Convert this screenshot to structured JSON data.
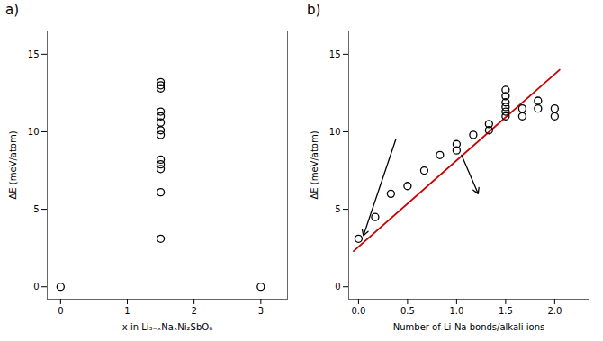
{
  "chart_data": [
    {
      "type": "scatter",
      "title": "a)",
      "x_label": "x in Li₃₋ₓNaₓNi₂SbO₆",
      "y_label": "ΔE (meV/atom)",
      "xlim": [
        -0.2,
        3.4
      ],
      "ylim": [
        -0.8,
        16.5
      ],
      "xticks": [
        0,
        1,
        2,
        3
      ],
      "yticks": [
        0,
        5,
        10,
        15
      ],
      "series": [
        {
          "type": "scatter",
          "marker": "circle",
          "color": "#000000",
          "x": [
            0.0,
            1.5,
            1.5,
            1.5,
            1.5,
            1.5,
            1.5,
            1.5,
            1.5,
            1.5,
            1.5,
            1.5,
            1.5,
            1.5,
            3.0
          ],
          "values": [
            0.0,
            3.1,
            6.1,
            7.6,
            7.9,
            8.2,
            9.8,
            10.1,
            10.6,
            11.0,
            11.3,
            12.8,
            13.0,
            13.2,
            0.0
          ]
        }
      ]
    },
    {
      "type": "scatter",
      "title": "b)",
      "x_label": "Number of Li-Na bonds/alkali ions",
      "y_label": "ΔE (meV/atom)",
      "xlim": [
        -0.1,
        2.35
      ],
      "ylim": [
        -0.8,
        16.5
      ],
      "xticks": [
        {
          "value": 0,
          "label": "0.0"
        },
        0.5,
        {
          "value": 1,
          "label": "1.0"
        },
        1.5,
        {
          "value": 2,
          "label": "2.0"
        }
      ],
      "yticks": [
        0,
        5,
        10,
        15
      ],
      "series": [
        {
          "type": "line",
          "line_style": "solid",
          "color": "#cc0000",
          "x": [
            -0.05,
            2.05
          ],
          "values": [
            2.3,
            14.0
          ]
        },
        {
          "type": "scatter",
          "marker": "circle",
          "color": "#000000",
          "x": [
            0.0,
            0.17,
            0.33,
            0.5,
            0.67,
            0.83,
            1.0,
            1.0,
            1.17,
            1.33,
            1.33,
            1.5,
            1.5,
            1.5,
            1.5,
            1.5,
            1.5,
            1.67,
            1.67,
            1.83,
            1.83,
            2.0,
            2.0
          ],
          "values": [
            3.1,
            4.5,
            6.0,
            6.5,
            7.5,
            8.5,
            8.8,
            9.2,
            9.8,
            10.1,
            10.5,
            11.0,
            11.3,
            11.6,
            11.9,
            12.3,
            12.7,
            11.0,
            11.5,
            11.5,
            12.0,
            11.0,
            11.5
          ]
        }
      ],
      "annotations": [
        {
          "type": "arrow",
          "start": [
            0.38,
            9.5
          ],
          "end": [
            0.05,
            3.3
          ]
        },
        {
          "type": "arrow",
          "start": [
            1.05,
            8.5
          ],
          "end": [
            1.22,
            6.0
          ]
        }
      ]
    }
  ]
}
